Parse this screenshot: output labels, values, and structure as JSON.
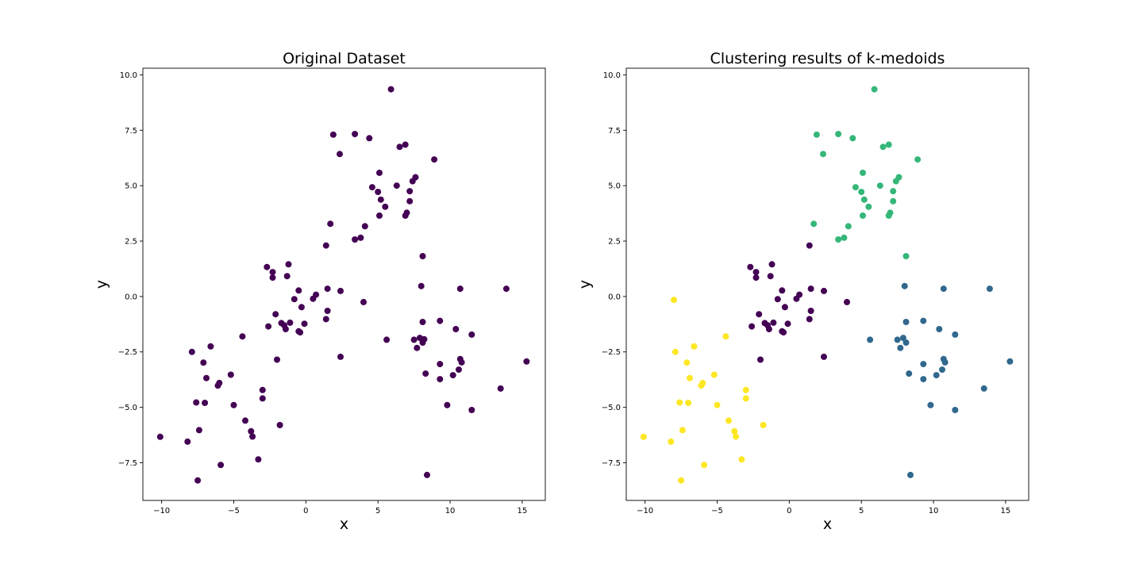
{
  "chart_data": [
    {
      "type": "scatter",
      "title": "Original Dataset",
      "xlabel": "x",
      "ylabel": "y",
      "xlim": [
        -11.3,
        16.6
      ],
      "ylim": [
        -9.2,
        10.3
      ],
      "xticks": [
        -10,
        -5,
        0,
        5,
        10,
        15
      ],
      "xtick_labels": [
        "−10",
        "−5",
        "0",
        "5",
        "10",
        "15"
      ],
      "yticks": [
        -7.5,
        -5.0,
        -2.5,
        0.0,
        2.5,
        5.0,
        7.5,
        10.0
      ],
      "ytick_labels": [
        "−7.5",
        "−5.0",
        "−2.5",
        "0.0",
        "2.5",
        "5.0",
        "7.5",
        "10.0"
      ],
      "grid": false,
      "series": [
        {
          "color": "#440154",
          "points": [
            [
              5.9,
              9.35
            ],
            [
              1.9,
              7.3
            ],
            [
              3.4,
              7.33
            ],
            [
              4.4,
              7.14
            ],
            [
              2.35,
              6.43
            ],
            [
              6.5,
              6.75
            ],
            [
              6.9,
              6.85
            ],
            [
              8.9,
              6.18
            ],
            [
              5.1,
              5.58
            ],
            [
              7.6,
              5.38
            ],
            [
              7.4,
              5.2
            ],
            [
              4.6,
              4.93
            ],
            [
              6.3,
              5.0
            ],
            [
              5.0,
              4.72
            ],
            [
              7.2,
              4.75
            ],
            [
              5.2,
              4.37
            ],
            [
              7.2,
              4.3
            ],
            [
              5.5,
              4.05
            ],
            [
              5.1,
              3.65
            ],
            [
              6.9,
              3.65
            ],
            [
              7.0,
              3.78
            ],
            [
              1.7,
              3.28
            ],
            [
              4.1,
              3.17
            ],
            [
              3.4,
              2.57
            ],
            [
              3.8,
              2.65
            ],
            [
              1.4,
              2.3
            ],
            [
              8.1,
              1.82
            ],
            [
              -2.7,
              1.33
            ],
            [
              -1.2,
              1.45
            ],
            [
              -2.3,
              1.1
            ],
            [
              -1.3,
              0.92
            ],
            [
              -2.3,
              0.85
            ],
            [
              -0.5,
              0.27
            ],
            [
              1.5,
              0.35
            ],
            [
              2.4,
              0.25
            ],
            [
              8.0,
              0.47
            ],
            [
              10.7,
              0.35
            ],
            [
              13.9,
              0.35
            ],
            [
              0.7,
              0.08
            ],
            [
              -0.8,
              -0.12
            ],
            [
              4.0,
              -0.25
            ],
            [
              -0.3,
              -0.48
            ],
            [
              1.5,
              -0.65
            ],
            [
              -2.1,
              -0.8
            ],
            [
              1.4,
              -1.02
            ],
            [
              8.1,
              -1.15
            ],
            [
              9.3,
              -1.1
            ],
            [
              -1.7,
              -1.2
            ],
            [
              -1.1,
              -1.18
            ],
            [
              -1.5,
              -1.3
            ],
            [
              -0.1,
              -1.23
            ],
            [
              -2.6,
              -1.35
            ],
            [
              -1.4,
              -1.47
            ],
            [
              10.4,
              -1.47
            ],
            [
              -0.5,
              -1.57
            ],
            [
              -0.4,
              -1.62
            ],
            [
              11.5,
              -1.72
            ],
            [
              -4.4,
              -1.8
            ],
            [
              5.6,
              -1.95
            ],
            [
              7.5,
              -1.95
            ],
            [
              7.9,
              -1.87
            ],
            [
              8.2,
              -1.93
            ],
            [
              8.1,
              -2.08
            ],
            [
              -6.6,
              -2.25
            ],
            [
              7.7,
              -2.32
            ],
            [
              -7.9,
              -2.5
            ],
            [
              2.4,
              -2.72
            ],
            [
              -2.0,
              -2.85
            ],
            [
              -7.1,
              -2.98
            ],
            [
              9.3,
              -3.05
            ],
            [
              10.7,
              -2.82
            ],
            [
              10.8,
              -2.97
            ],
            [
              10.6,
              -3.3
            ],
            [
              10.2,
              -3.55
            ],
            [
              8.3,
              -3.48
            ],
            [
              -5.2,
              -3.53
            ],
            [
              9.3,
              -3.73
            ],
            [
              -6.9,
              -3.68
            ],
            [
              -6.0,
              -3.9
            ],
            [
              -6.1,
              -4.02
            ],
            [
              -3.0,
              -4.22
            ],
            [
              -3.0,
              -4.6
            ],
            [
              -7.6,
              -4.78
            ],
            [
              -7.0,
              -4.8
            ],
            [
              -5.0,
              -4.9
            ],
            [
              9.8,
              -4.9
            ],
            [
              11.5,
              -5.12
            ],
            [
              -4.2,
              -5.6
            ],
            [
              -1.8,
              -5.8
            ],
            [
              -3.8,
              -6.08
            ],
            [
              -3.7,
              -6.32
            ],
            [
              -7.4,
              -6.03
            ],
            [
              -10.1,
              -6.33
            ],
            [
              -8.2,
              -6.55
            ],
            [
              -5.9,
              -7.6
            ],
            [
              -3.3,
              -7.35
            ],
            [
              -7.5,
              -8.3
            ],
            [
              8.4,
              -8.05
            ],
            [
              13.5,
              -4.15
            ],
            [
              15.3,
              -2.93
            ],
            [
              0.5,
              -0.1
            ]
          ]
        }
      ]
    },
    {
      "type": "scatter",
      "title": "Clustering results of k-medoids",
      "xlabel": "x",
      "ylabel": "y",
      "xlim": [
        -11.3,
        16.6
      ],
      "ylim": [
        -9.2,
        10.3
      ],
      "xticks": [
        -10,
        -5,
        0,
        5,
        10,
        15
      ],
      "xtick_labels": [
        "−10",
        "−5",
        "0",
        "5",
        "10",
        "15"
      ],
      "yticks": [
        -7.5,
        -5.0,
        -2.5,
        0.0,
        2.5,
        5.0,
        7.5,
        10.0
      ],
      "ytick_labels": [
        "−7.5",
        "−5.0",
        "−2.5",
        "0.0",
        "2.5",
        "5.0",
        "7.5",
        "10.0"
      ],
      "grid": false,
      "series": [
        {
          "color": "#35b779",
          "points": [
            [
              5.9,
              9.35
            ],
            [
              1.9,
              7.3
            ],
            [
              3.4,
              7.33
            ],
            [
              4.4,
              7.14
            ],
            [
              2.35,
              6.43
            ],
            [
              6.5,
              6.75
            ],
            [
              6.9,
              6.85
            ],
            [
              8.9,
              6.18
            ],
            [
              5.1,
              5.58
            ],
            [
              7.6,
              5.38
            ],
            [
              7.4,
              5.2
            ],
            [
              4.6,
              4.93
            ],
            [
              6.3,
              5.0
            ],
            [
              5.0,
              4.72
            ],
            [
              7.2,
              4.75
            ],
            [
              5.2,
              4.37
            ],
            [
              7.2,
              4.3
            ],
            [
              5.5,
              4.05
            ],
            [
              5.1,
              3.65
            ],
            [
              6.9,
              3.65
            ],
            [
              7.0,
              3.78
            ],
            [
              1.7,
              3.28
            ],
            [
              4.1,
              3.17
            ],
            [
              3.4,
              2.57
            ],
            [
              3.8,
              2.65
            ],
            [
              8.1,
              1.82
            ]
          ]
        },
        {
          "color": "#440154",
          "points": [
            [
              1.4,
              2.3
            ],
            [
              -2.7,
              1.33
            ],
            [
              -1.2,
              1.45
            ],
            [
              -2.3,
              1.1
            ],
            [
              -1.3,
              0.92
            ],
            [
              -2.3,
              0.85
            ],
            [
              -0.5,
              0.27
            ],
            [
              1.5,
              0.35
            ],
            [
              2.4,
              0.25
            ],
            [
              0.7,
              0.08
            ],
            [
              -0.8,
              -0.12
            ],
            [
              4.0,
              -0.25
            ],
            [
              -0.3,
              -0.48
            ],
            [
              1.5,
              -0.65
            ],
            [
              -2.1,
              -0.8
            ],
            [
              1.4,
              -1.02
            ],
            [
              -1.7,
              -1.2
            ],
            [
              -1.1,
              -1.18
            ],
            [
              -1.5,
              -1.3
            ],
            [
              -0.1,
              -1.23
            ],
            [
              -2.6,
              -1.35
            ],
            [
              -1.4,
              -1.47
            ],
            [
              -0.5,
              -1.57
            ],
            [
              -0.4,
              -1.62
            ],
            [
              2.4,
              -2.72
            ],
            [
              -2.0,
              -2.85
            ],
            [
              0.5,
              -0.1
            ]
          ]
        },
        {
          "color": "#31688e",
          "points": [
            [
              8.0,
              0.47
            ],
            [
              10.7,
              0.35
            ],
            [
              13.9,
              0.35
            ],
            [
              8.1,
              -1.15
            ],
            [
              9.3,
              -1.1
            ],
            [
              10.4,
              -1.47
            ],
            [
              11.5,
              -1.72
            ],
            [
              5.6,
              -1.95
            ],
            [
              7.5,
              -1.95
            ],
            [
              7.9,
              -1.87
            ],
            [
              8.1,
              -2.08
            ],
            [
              7.7,
              -2.32
            ],
            [
              9.3,
              -3.05
            ],
            [
              10.7,
              -2.82
            ],
            [
              10.8,
              -2.97
            ],
            [
              10.6,
              -3.3
            ],
            [
              10.2,
              -3.55
            ],
            [
              8.3,
              -3.48
            ],
            [
              9.3,
              -3.73
            ],
            [
              9.8,
              -4.9
            ],
            [
              11.5,
              -5.12
            ],
            [
              8.4,
              -8.05
            ],
            [
              13.5,
              -4.15
            ],
            [
              15.3,
              -2.93
            ]
          ]
        },
        {
          "color": "#fde725",
          "points": [
            [
              -8.0,
              -0.15
            ],
            [
              -4.4,
              -1.8
            ],
            [
              -6.6,
              -2.25
            ],
            [
              -7.9,
              -2.5
            ],
            [
              -7.1,
              -2.98
            ],
            [
              -5.2,
              -3.53
            ],
            [
              -6.9,
              -3.68
            ],
            [
              -6.0,
              -3.9
            ],
            [
              -6.1,
              -4.02
            ],
            [
              -3.0,
              -4.22
            ],
            [
              -3.0,
              -4.6
            ],
            [
              -7.6,
              -4.78
            ],
            [
              -7.0,
              -4.8
            ],
            [
              -5.0,
              -4.9
            ],
            [
              -4.2,
              -5.6
            ],
            [
              -1.8,
              -5.8
            ],
            [
              -3.8,
              -6.08
            ],
            [
              -3.7,
              -6.32
            ],
            [
              -7.4,
              -6.03
            ],
            [
              -10.1,
              -6.33
            ],
            [
              -8.2,
              -6.55
            ],
            [
              -5.9,
              -7.6
            ],
            [
              -3.3,
              -7.35
            ],
            [
              -7.5,
              -8.3
            ]
          ]
        }
      ]
    }
  ]
}
